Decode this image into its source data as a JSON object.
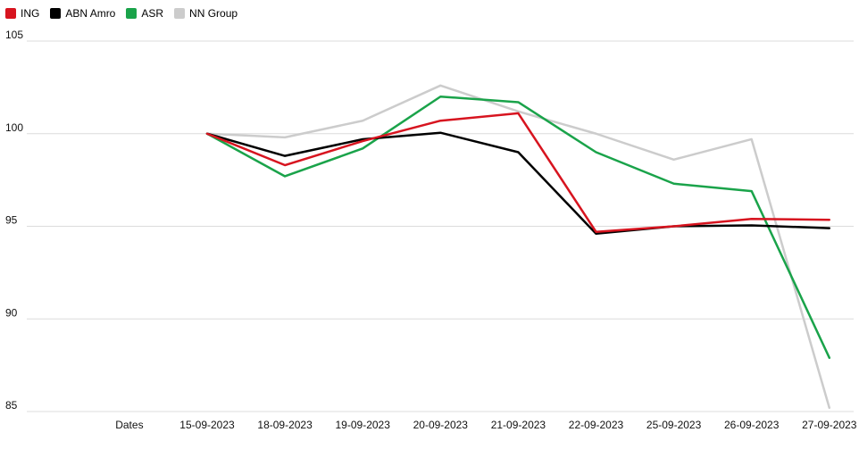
{
  "chart_data": {
    "type": "line",
    "title": "",
    "xlabel": "",
    "ylabel": "",
    "x_header": "Dates",
    "categories": [
      "15-09-2023",
      "18-09-2023",
      "19-09-2023",
      "20-09-2023",
      "21-09-2023",
      "22-09-2023",
      "25-09-2023",
      "26-09-2023",
      "27-09-2023"
    ],
    "ylim": [
      85,
      105
    ],
    "yticks": [
      85,
      90,
      95,
      100,
      105
    ],
    "grid": true,
    "legend_position": "top-left",
    "series": [
      {
        "name": "ING",
        "color": "#d7141f",
        "values": [
          100.0,
          98.3,
          99.6,
          100.7,
          101.1,
          94.7,
          95.0,
          95.4,
          95.35
        ]
      },
      {
        "name": "ABN Amro",
        "color": "#000000",
        "values": [
          100.0,
          98.8,
          99.7,
          100.05,
          99.0,
          94.6,
          95.0,
          95.05,
          94.9
        ]
      },
      {
        "name": "ASR",
        "color": "#1aa34a",
        "values": [
          100.0,
          97.7,
          99.2,
          102.0,
          101.7,
          99.0,
          97.3,
          96.9,
          87.9
        ]
      },
      {
        "name": "NN Group",
        "color": "#cccccc",
        "values": [
          100.0,
          99.8,
          100.7,
          102.6,
          101.2,
          100.0,
          98.6,
          99.7,
          85.2
        ]
      }
    ]
  }
}
